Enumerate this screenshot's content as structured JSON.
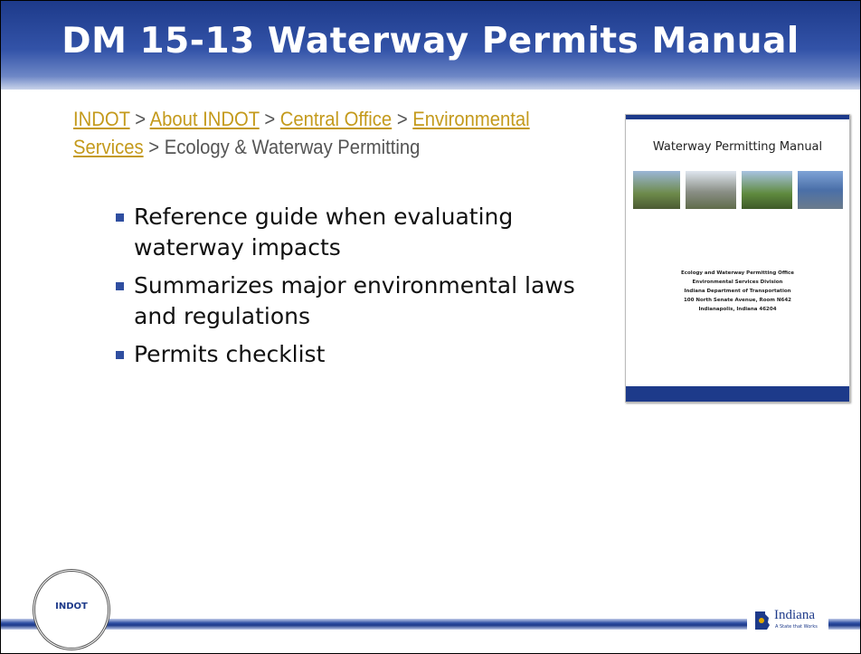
{
  "slide": {
    "title": "DM 15-13 Waterway Permits Manual",
    "breadcrumb": {
      "separator": ">",
      "items": [
        {
          "text": "INDOT",
          "link": true
        },
        {
          "text": "About INDOT",
          "link": true
        },
        {
          "text": "Central Office",
          "link": true
        },
        {
          "text": "Environmental Services",
          "link": true
        },
        {
          "text": "Ecology & Waterway Permitting",
          "link": false
        }
      ]
    },
    "bullets": [
      "Reference guide when evaluating waterway impacts",
      "Summarizes major environmental laws and regulations",
      "Permits checklist"
    ],
    "thumbnail": {
      "title": "Waterway Permitting Manual",
      "address": [
        "Ecology and Waterway Permitting Office",
        "Environmental Services Division",
        "Indiana Department of Transportation",
        "100 North Senate Avenue, Room N642",
        "Indianapolis, Indiana 46204"
      ]
    },
    "footer": {
      "seal": "INDOT",
      "logo": "Indiana",
      "tagline": "A State that Works"
    }
  }
}
